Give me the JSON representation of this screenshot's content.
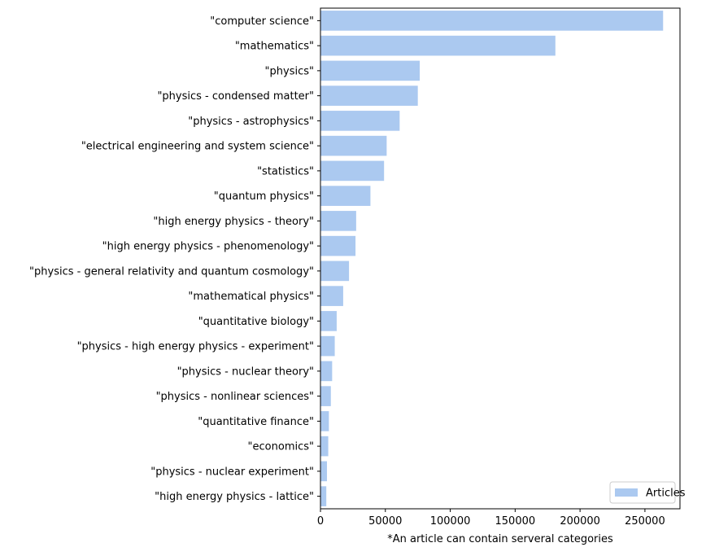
{
  "chart_data": {
    "type": "bar",
    "orientation": "horizontal",
    "categories": [
      "\"computer science\"",
      "\"mathematics\"",
      "\"physics\"",
      "\"physics - condensed matter\"",
      "\"physics - astrophysics\"",
      "\"electrical engineering and system science\"",
      "\"statistics\"",
      "\"quantum physics\"",
      "\"high energy physics - theory\"",
      "\"high energy physics - phenomenology\"",
      "\"physics - general relativity and quantum cosmology\"",
      "\"mathematical physics\"",
      "\"quantitative biology\"",
      "\"physics - high energy physics - experiment\"",
      "\"physics - nuclear theory\"",
      "\"physics - nonlinear sciences\"",
      "\"quantitative finance\"",
      "\"economics\"",
      "\"physics - nuclear experiment\"",
      "\"high energy physics - lattice\""
    ],
    "series": [
      {
        "name": "Articles",
        "color": "#abc9f0",
        "values": [
          264000,
          181000,
          76500,
          75000,
          61000,
          51000,
          49000,
          38500,
          27500,
          27000,
          22000,
          17500,
          12500,
          11000,
          9000,
          8000,
          6500,
          6000,
          5000,
          4500
        ]
      }
    ],
    "xlabel": "*An article can contain serveral categories",
    "ylabel": "",
    "xlim": [
      0,
      277000
    ],
    "xticks": [
      0,
      50000,
      100000,
      150000,
      200000,
      250000
    ],
    "xtick_labels": [
      "0",
      "50000",
      "100000",
      "150000",
      "200000",
      "250000"
    ],
    "grid": false,
    "legend": {
      "position": "lower-right",
      "entries": [
        "Articles"
      ]
    }
  }
}
